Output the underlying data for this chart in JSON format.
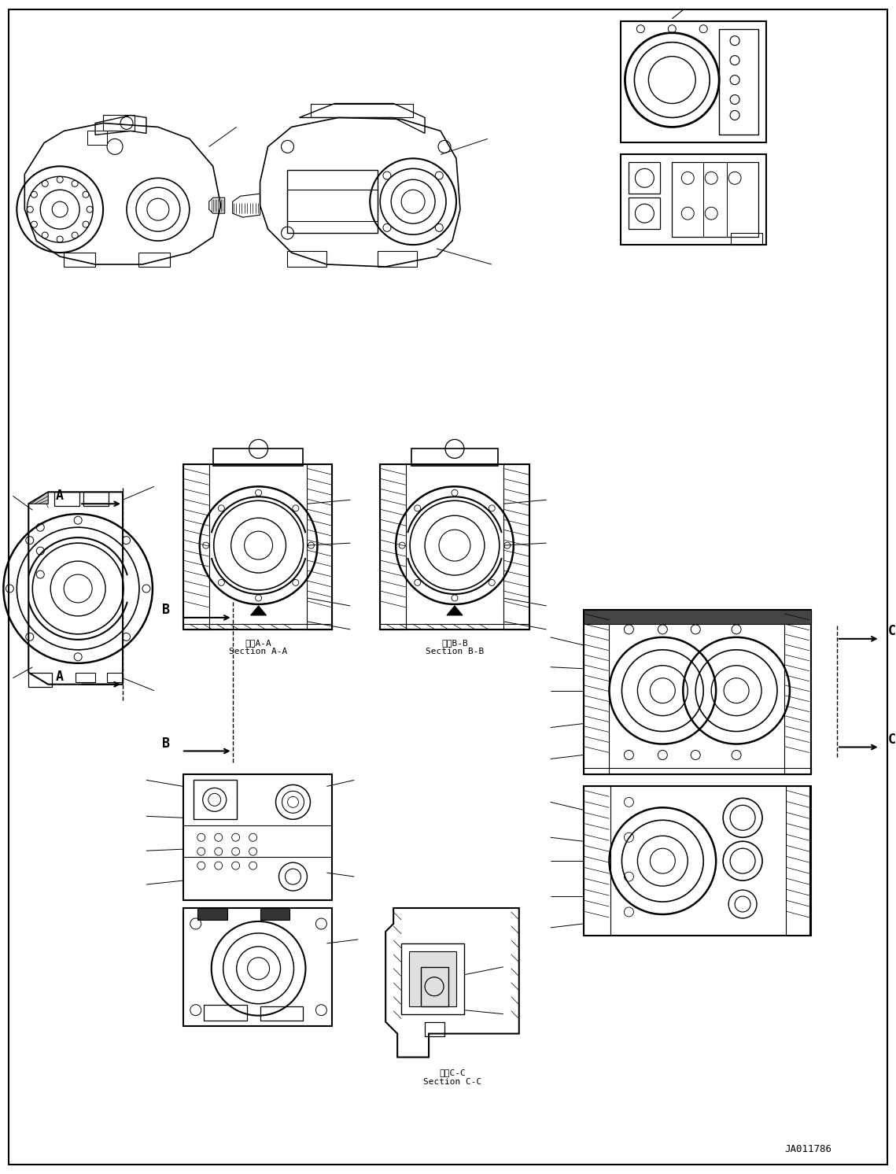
{
  "background_color": "#ffffff",
  "fig_width": 11.39,
  "fig_height": 14.92,
  "dpi": 100,
  "text_color": "#000000",
  "line_color": "#000000",
  "corner_label": "JA011786",
  "section_aa_label": "断面A-A\nSection A-A",
  "section_bb_label": "断面B-B\nSection B-B",
  "section_cc_label": "断面C-C\nSection C-C"
}
